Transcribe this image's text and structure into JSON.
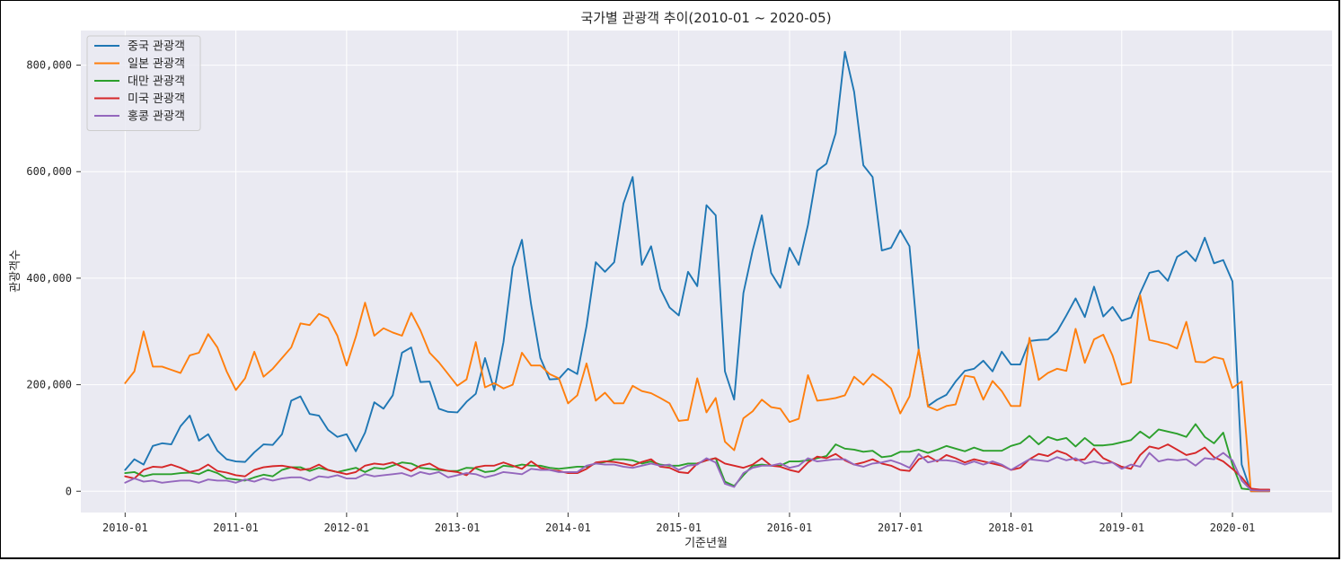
{
  "chart_data": {
    "type": "line",
    "title": "국가별 관광객 추이(2010-01 ~ 2020-05)",
    "xlabel": "기준년월",
    "ylabel": "관광객수",
    "grid": true,
    "legend_position": "top-left",
    "background": "#eaeaf2",
    "xlim": [
      2009.6,
      2020.9
    ],
    "ylim": [
      -40000,
      865000
    ],
    "x_ticks": [
      {
        "value": 2010,
        "label": "2010-01"
      },
      {
        "value": 2011,
        "label": "2011-01"
      },
      {
        "value": 2012,
        "label": "2012-01"
      },
      {
        "value": 2013,
        "label": "2013-01"
      },
      {
        "value": 2014,
        "label": "2014-01"
      },
      {
        "value": 2015,
        "label": "2015-01"
      },
      {
        "value": 2016,
        "label": "2016-01"
      },
      {
        "value": 2017,
        "label": "2017-01"
      },
      {
        "value": 2018,
        "label": "2018-01"
      },
      {
        "value": 2019,
        "label": "2019-01"
      },
      {
        "value": 2020,
        "label": "2020-01"
      }
    ],
    "y_ticks": [
      {
        "value": 0,
        "label": "0"
      },
      {
        "value": 200000,
        "label": "200,000"
      },
      {
        "value": 400000,
        "label": "400,000"
      },
      {
        "value": 600000,
        "label": "600,000"
      },
      {
        "value": 800000,
        "label": "800,000"
      }
    ],
    "start": "2010-01",
    "series": [
      {
        "name": "중국 관광객",
        "color": "#1f77b4",
        "values": [
          40000,
          60000,
          50000,
          85000,
          90000,
          88000,
          122000,
          142000,
          95000,
          107000,
          76000,
          60000,
          56000,
          55000,
          73000,
          88000,
          87000,
          107000,
          170000,
          178000,
          145000,
          142000,
          115000,
          102000,
          107000,
          75000,
          110000,
          167000,
          155000,
          180000,
          260000,
          270000,
          205000,
          206000,
          155000,
          149000,
          148000,
          168000,
          183000,
          250000,
          190000,
          280000,
          420000,
          472000,
          350000,
          250000,
          210000,
          211000,
          230000,
          220000,
          310000,
          430000,
          412000,
          430000,
          540000,
          590000,
          425000,
          460000,
          380000,
          345000,
          330000,
          412000,
          385000,
          537000,
          518000,
          225000,
          172000,
          372000,
          452000,
          518000,
          410000,
          382000,
          457000,
          425000,
          500000,
          602000,
          615000,
          672000,
          825000,
          750000,
          612000,
          590000,
          452000,
          457000,
          490000,
          460000,
          265000,
          160000,
          172000,
          181000,
          206000,
          226000,
          230000,
          245000,
          225000,
          262000,
          238000,
          238000,
          282000,
          284000,
          285000,
          300000,
          330000,
          362000,
          327000,
          384000,
          328000,
          346000,
          320000,
          326000,
          372000,
          410000,
          414000,
          395000,
          440000,
          451000,
          432000,
          476000,
          428000,
          434000,
          394000,
          50000,
          0,
          0,
          0
        ]
      },
      {
        "name": "일본 관광객",
        "color": "#ff7f0e",
        "values": [
          203000,
          225000,
          300000,
          234000,
          234000,
          228000,
          222000,
          255000,
          260000,
          295000,
          270000,
          225000,
          190000,
          212000,
          262000,
          215000,
          230000,
          250000,
          270000,
          315000,
          312000,
          333000,
          325000,
          292000,
          236000,
          290000,
          354000,
          292000,
          306000,
          298000,
          292000,
          335000,
          302000,
          260000,
          242000,
          220000,
          198000,
          210000,
          280000,
          195000,
          203000,
          193000,
          200000,
          260000,
          236000,
          236000,
          220000,
          212000,
          165000,
          180000,
          240000,
          170000,
          185000,
          165000,
          165000,
          198000,
          188000,
          184000,
          175000,
          165000,
          132000,
          134000,
          212000,
          148000,
          175000,
          93000,
          77000,
          137000,
          150000,
          172000,
          158000,
          155000,
          130000,
          136000,
          218000,
          170000,
          172000,
          175000,
          180000,
          215000,
          200000,
          220000,
          208000,
          193000,
          146000,
          178000,
          266000,
          159000,
          152000,
          160000,
          163000,
          217000,
          214000,
          172000,
          207000,
          188000,
          160000,
          160000,
          288000,
          209000,
          222000,
          230000,
          226000,
          305000,
          241000,
          285000,
          294000,
          255000,
          200000,
          204000,
          368000,
          284000,
          280000,
          276000,
          268000,
          318000,
          243000,
          242000,
          252000,
          248000,
          194000,
          206000,
          0,
          0,
          0
        ]
      },
      {
        "name": "대만 관광객",
        "color": "#2ca02c",
        "values": [
          34000,
          36000,
          28000,
          32000,
          32000,
          32000,
          34000,
          35000,
          32000,
          40000,
          34000,
          24000,
          22000,
          20000,
          26000,
          31000,
          28000,
          40000,
          45000,
          45000,
          38000,
          44000,
          40000,
          36000,
          40000,
          44000,
          36000,
          44000,
          42000,
          48000,
          54000,
          52000,
          44000,
          42000,
          40000,
          38000,
          38000,
          44000,
          43000,
          36000,
          38000,
          48000,
          46000,
          50000,
          48000,
          48000,
          44000,
          42000,
          44000,
          46000,
          46000,
          52000,
          55000,
          60000,
          60000,
          58000,
          52000,
          56000,
          50000,
          48000,
          48000,
          52000,
          52000,
          58000,
          62000,
          18000,
          10000,
          30000,
          48000,
          50000,
          48000,
          48000,
          56000,
          56000,
          58000,
          62000,
          66000,
          88000,
          80000,
          78000,
          74000,
          76000,
          64000,
          66000,
          74000,
          74000,
          78000,
          72000,
          78000,
          85000,
          80000,
          75000,
          82000,
          76000,
          76000,
          76000,
          85000,
          90000,
          104000,
          88000,
          102000,
          96000,
          100000,
          84000,
          100000,
          86000,
          86000,
          88000,
          92000,
          96000,
          112000,
          100000,
          116000,
          112000,
          108000,
          102000,
          126000,
          102000,
          90000,
          110000,
          50000,
          5000,
          3000,
          2000,
          2000
        ]
      },
      {
        "name": "미국 관광객",
        "color": "#d62728",
        "values": [
          28000,
          24000,
          40000,
          46000,
          45000,
          50000,
          44000,
          36000,
          40000,
          50000,
          38000,
          35000,
          30000,
          28000,
          40000,
          45000,
          47000,
          48000,
          45000,
          40000,
          42000,
          50000,
          40000,
          36000,
          32000,
          36000,
          48000,
          52000,
          50000,
          54000,
          46000,
          38000,
          48000,
          52000,
          42000,
          38000,
          36000,
          30000,
          45000,
          48000,
          48000,
          54000,
          48000,
          42000,
          56000,
          44000,
          40000,
          38000,
          34000,
          34000,
          42000,
          54000,
          56000,
          55000,
          52000,
          48000,
          55000,
          60000,
          46000,
          44000,
          36000,
          34000,
          52000,
          58000,
          62000,
          52000,
          48000,
          44000,
          50000,
          62000,
          48000,
          46000,
          40000,
          36000,
          54000,
          65000,
          62000,
          70000,
          58000,
          50000,
          54000,
          60000,
          52000,
          48000,
          40000,
          38000,
          60000,
          66000,
          56000,
          68000,
          62000,
          54000,
          60000,
          56000,
          52000,
          48000,
          40000,
          44000,
          60000,
          70000,
          66000,
          76000,
          70000,
          58000,
          60000,
          80000,
          62000,
          54000,
          46000,
          42000,
          68000,
          84000,
          80000,
          88000,
          78000,
          68000,
          72000,
          82000,
          64000,
          56000,
          42000,
          26000,
          5000,
          3000,
          3000
        ]
      },
      {
        "name": "홍콩 관광객",
        "color": "#9467bd",
        "values": [
          16000,
          24000,
          18000,
          20000,
          16000,
          18000,
          20000,
          20000,
          16000,
          22000,
          20000,
          20000,
          16000,
          22000,
          18000,
          24000,
          20000,
          24000,
          26000,
          26000,
          20000,
          28000,
          26000,
          30000,
          24000,
          24000,
          32000,
          28000,
          30000,
          32000,
          34000,
          28000,
          36000,
          32000,
          36000,
          26000,
          30000,
          34000,
          32000,
          26000,
          30000,
          36000,
          34000,
          32000,
          42000,
          40000,
          40000,
          36000,
          36000,
          36000,
          48000,
          52000,
          50000,
          50000,
          46000,
          44000,
          48000,
          52000,
          48000,
          50000,
          40000,
          48000,
          50000,
          62000,
          54000,
          14000,
          8000,
          34000,
          44000,
          48000,
          48000,
          52000,
          44000,
          48000,
          62000,
          56000,
          58000,
          60000,
          60000,
          50000,
          46000,
          52000,
          54000,
          58000,
          52000,
          44000,
          70000,
          54000,
          58000,
          58000,
          56000,
          50000,
          56000,
          50000,
          56000,
          50000,
          40000,
          50000,
          60000,
          58000,
          56000,
          64000,
          58000,
          62000,
          52000,
          56000,
          52000,
          54000,
          42000,
          50000,
          46000,
          72000,
          56000,
          60000,
          58000,
          60000,
          48000,
          62000,
          60000,
          72000,
          58000,
          20000,
          2000,
          1000,
          1000
        ]
      }
    ]
  }
}
